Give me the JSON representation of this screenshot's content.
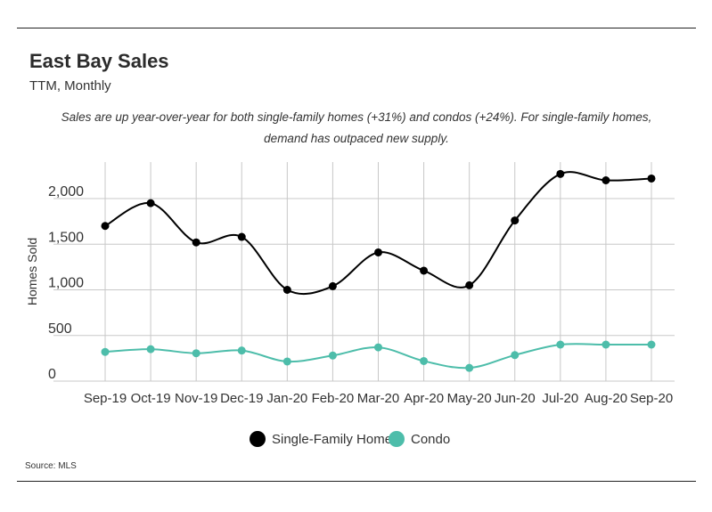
{
  "title": "East Bay Sales",
  "subtitle": "TTM, Monthly",
  "annotation": "Sales are up year-over-year for both single-family homes (+31%) and condos (+24%). For single-family homes, demand has outpaced new supply.",
  "source": "Source:  MLS",
  "chart_data": {
    "type": "line",
    "categories": [
      "Sep-19",
      "Oct-19",
      "Nov-19",
      "Dec-19",
      "Jan-20",
      "Feb-20",
      "Mar-20",
      "Apr-20",
      "May-20",
      "Jun-20",
      "Jul-20",
      "Aug-20",
      "Sep-20"
    ],
    "series": [
      {
        "name": "Single-Family Home",
        "color": "#000000",
        "values": [
          1700,
          1950,
          1520,
          1580,
          1000,
          1040,
          1410,
          1210,
          1050,
          1760,
          2270,
          2200,
          2220
        ]
      },
      {
        "name": "Condo",
        "color": "#4dbdaa",
        "values": [
          320,
          350,
          305,
          335,
          215,
          280,
          370,
          220,
          145,
          285,
          400,
          400,
          400
        ]
      }
    ],
    "ylabel": "Homes Sold",
    "xlabel": "",
    "yticks": [
      0,
      500,
      1000,
      1500,
      2000
    ],
    "ytick_labels": [
      "0",
      "500",
      "1,000",
      "1,500",
      "2,000"
    ],
    "ylim": [
      0,
      2400
    ],
    "grid": true,
    "legend": "bottom-center"
  }
}
